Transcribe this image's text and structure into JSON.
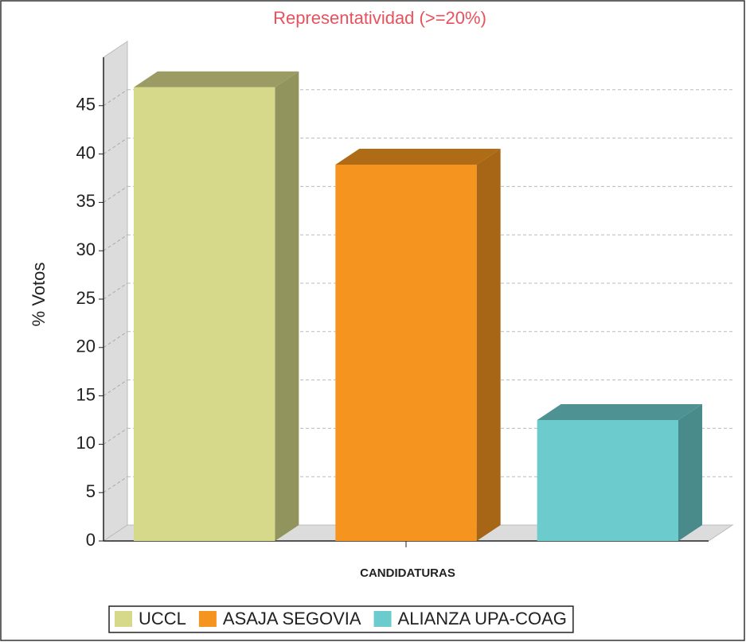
{
  "chart_data": {
    "type": "bar3d",
    "title": "Representatividad (>=20%)",
    "x_label": "CANDIDATURAS",
    "y_label": "% Votos",
    "categories": [
      "UCCL",
      "ASAJA SEGOVIA",
      "ALIANZA UPA-COAG"
    ],
    "values": [
      46.9,
      38.9,
      12.5
    ],
    "colors": [
      "#d6d98a",
      "#f59520",
      "#6ccbcc"
    ],
    "ylim": [
      0,
      50
    ],
    "yticks": [
      0,
      5,
      10,
      15,
      20,
      25,
      30,
      35,
      40,
      45
    ],
    "grid": true,
    "legend": "bottom"
  }
}
